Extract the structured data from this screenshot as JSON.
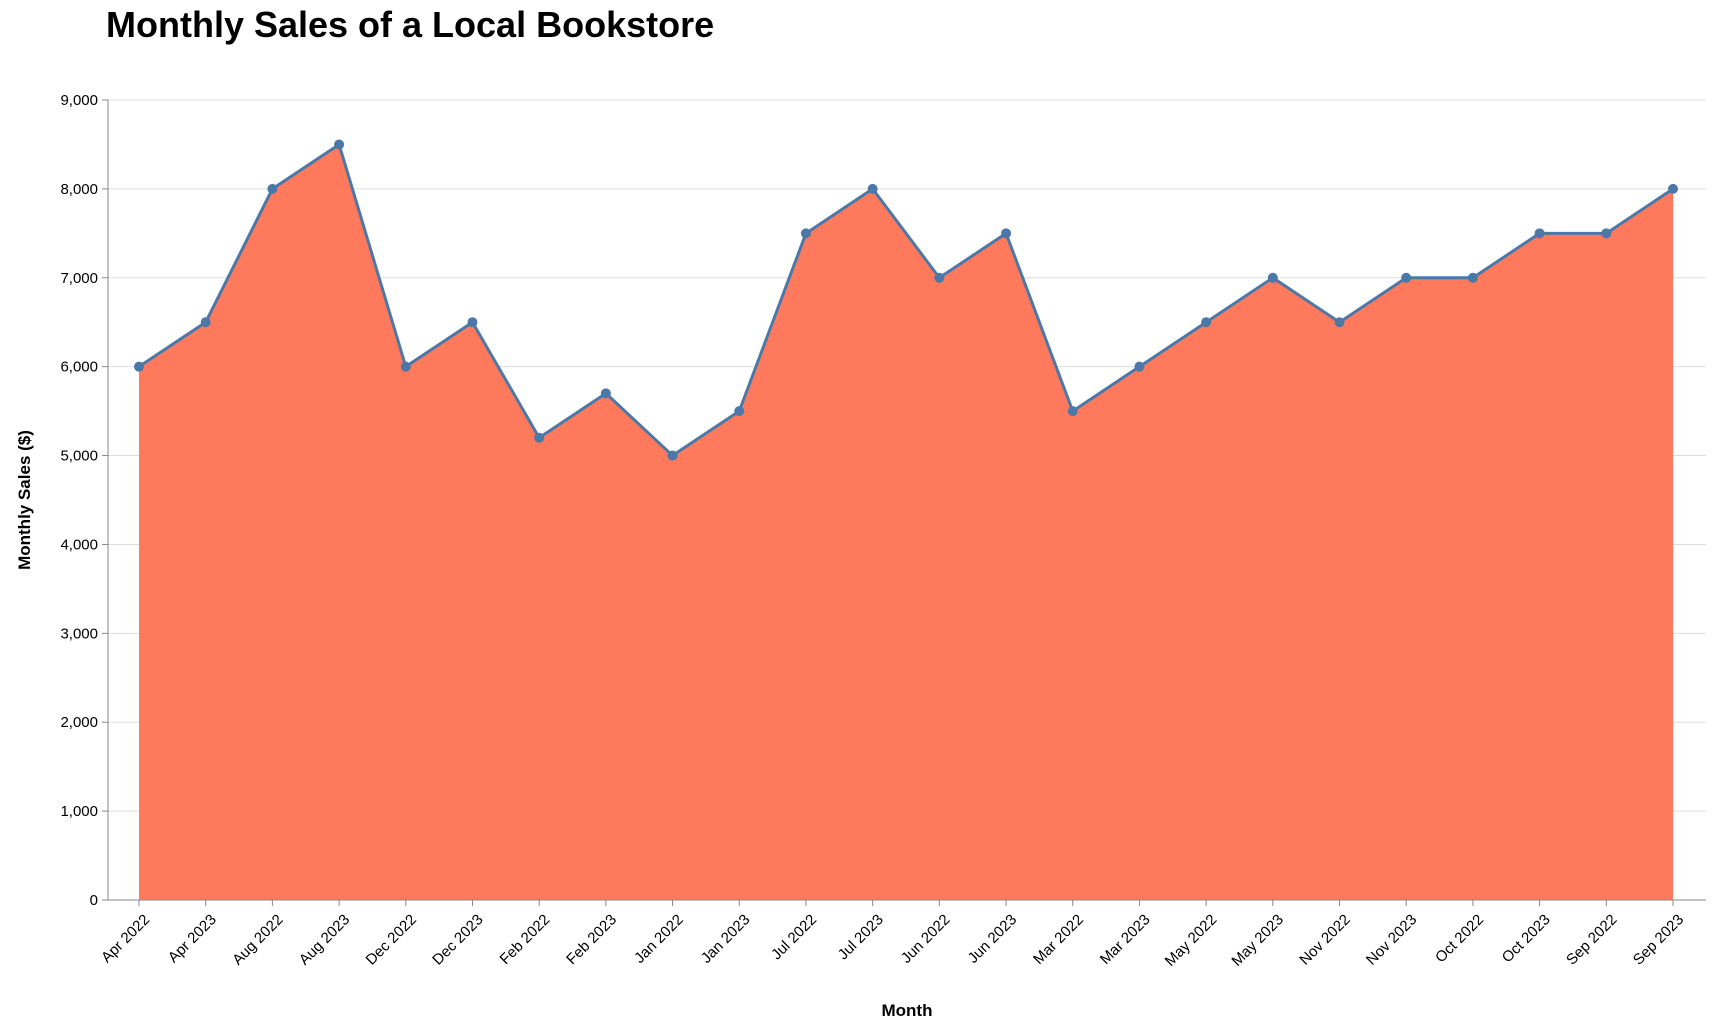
{
  "chart_data": {
    "type": "area",
    "title": "Monthly Sales of a Local Bookstore",
    "xlabel": "Month",
    "ylabel": "Monthly Sales ($)",
    "ylim": [
      0,
      9000
    ],
    "yticks": [
      0,
      1000,
      2000,
      3000,
      4000,
      5000,
      6000,
      7000,
      8000,
      9000
    ],
    "ytick_labels": [
      "0",
      "1,000",
      "2,000",
      "3,000",
      "4,000",
      "5,000",
      "6,000",
      "7,000",
      "8,000",
      "9,000"
    ],
    "grid": true,
    "categories": [
      "Apr 2022",
      "Apr 2023",
      "Aug 2022",
      "Aug 2023",
      "Dec 2022",
      "Dec 2023",
      "Feb 2022",
      "Feb 2023",
      "Jan 2022",
      "Jan 2023",
      "Jul 2022",
      "Jul 2023",
      "Jun 2022",
      "Jun 2023",
      "Mar 2022",
      "Mar 2023",
      "May 2022",
      "May 2023",
      "Nov 2022",
      "Nov 2023",
      "Oct 2022",
      "Oct 2023",
      "Sep 2022",
      "Sep 2023"
    ],
    "values": [
      6000,
      6500,
      8000,
      8500,
      6000,
      6500,
      5200,
      5700,
      5000,
      5500,
      7500,
      8000,
      7000,
      7500,
      5500,
      6000,
      6500,
      7000,
      6500,
      7000,
      7000,
      7500,
      7500,
      8000
    ],
    "colors": {
      "area": "#ff7a5c",
      "line": "#4c78a8",
      "point": "#4c78a8",
      "grid": "#dddddd",
      "axis": "#888888"
    }
  }
}
